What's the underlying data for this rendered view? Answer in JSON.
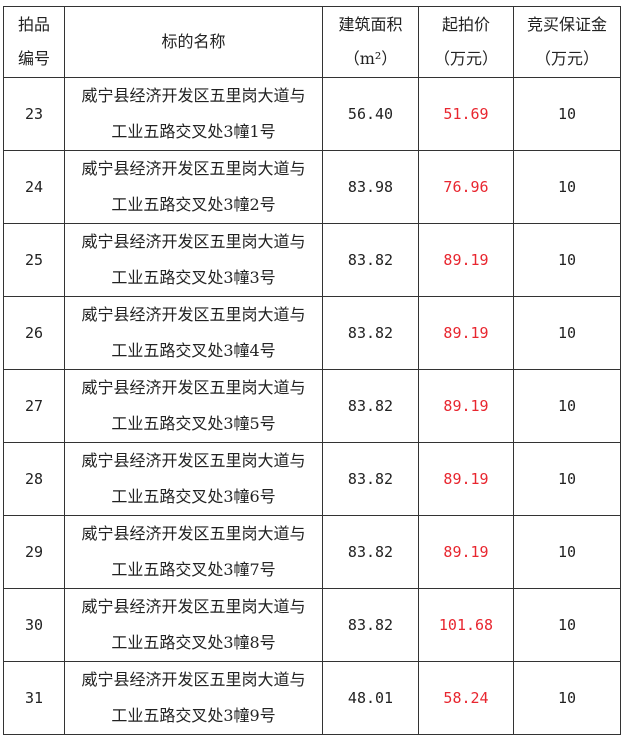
{
  "header": {
    "lot_no": "拍品编号",
    "lot_no_l1": "拍品",
    "lot_no_l2": "编号",
    "name": "标的名称",
    "area_l1": "建筑面积",
    "area_l2": "（m²）",
    "price_l1": "起拍价",
    "price_l2": "（万元）",
    "deposit_l1": "竞买保证金",
    "deposit_l2": "（万元）"
  },
  "colors": {
    "price": "#e8262f"
  },
  "rows": [
    {
      "no": "23",
      "name_l1": "威宁县经济开发区五里岗大道与",
      "name_l2": "工业五路交叉处3幢1号",
      "area": "56.40",
      "price": "51.69",
      "deposit": "10"
    },
    {
      "no": "24",
      "name_l1": "威宁县经济开发区五里岗大道与",
      "name_l2": "工业五路交叉处3幢2号",
      "area": "83.98",
      "price": "76.96",
      "deposit": "10"
    },
    {
      "no": "25",
      "name_l1": "威宁县经济开发区五里岗大道与",
      "name_l2": "工业五路交叉处3幢3号",
      "area": "83.82",
      "price": "89.19",
      "deposit": "10"
    },
    {
      "no": "26",
      "name_l1": "威宁县经济开发区五里岗大道与",
      "name_l2": "工业五路交叉处3幢4号",
      "area": "83.82",
      "price": "89.19",
      "deposit": "10"
    },
    {
      "no": "27",
      "name_l1": "威宁县经济开发区五里岗大道与",
      "name_l2": "工业五路交叉处3幢5号",
      "area": "83.82",
      "price": "89.19",
      "deposit": "10"
    },
    {
      "no": "28",
      "name_l1": "威宁县经济开发区五里岗大道与",
      "name_l2": "工业五路交叉处3幢6号",
      "area": "83.82",
      "price": "89.19",
      "deposit": "10"
    },
    {
      "no": "29",
      "name_l1": "威宁县经济开发区五里岗大道与",
      "name_l2": "工业五路交叉处3幢7号",
      "area": "83.82",
      "price": "89.19",
      "deposit": "10"
    },
    {
      "no": "30",
      "name_l1": "威宁县经济开发区五里岗大道与",
      "name_l2": "工业五路交叉处3幢8号",
      "area": "83.82",
      "price": "101.68",
      "deposit": "10"
    },
    {
      "no": "31",
      "name_l1": "威宁县经济开发区五里岗大道与",
      "name_l2": "工业五路交叉处3幢9号",
      "area": "48.01",
      "price": "58.24",
      "deposit": "10"
    }
  ]
}
